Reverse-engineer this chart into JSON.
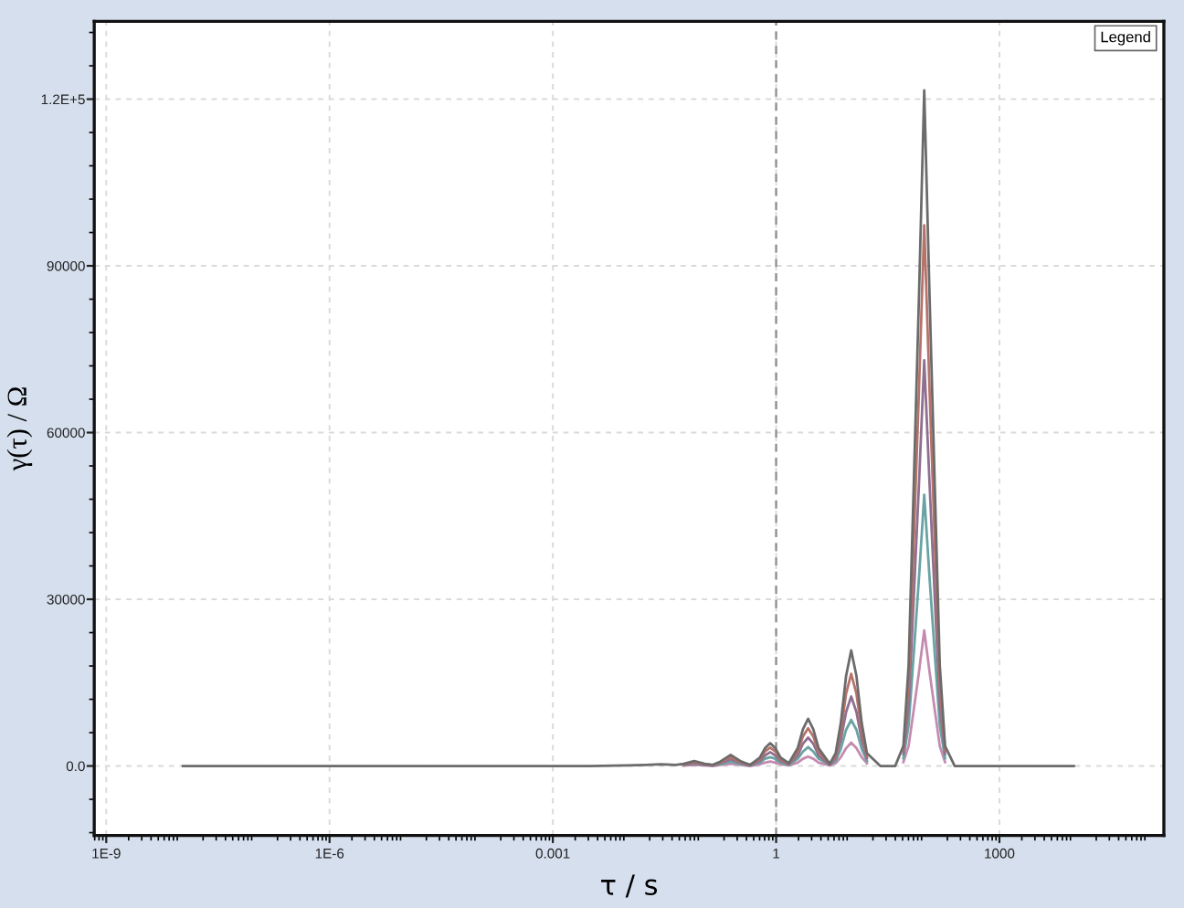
{
  "chart_data": {
    "type": "line",
    "xlabel": "τ / s",
    "ylabel": "γ(τ) / Ω",
    "annotations": [
      "Legend"
    ],
    "log": "x",
    "grid": true,
    "marker": "none",
    "line_style": "solid",
    "xlim": [
      6.9e-10,
      162000
    ],
    "xticks": [
      {
        "value": 1e-09,
        "label": "1E-9"
      },
      {
        "value": 1e-06,
        "label": "1E-6"
      },
      0.001,
      1,
      1000
    ],
    "ylim": [
      -12500,
      134000
    ],
    "yticks": [
      {
        "value": 0,
        "label": "0.0"
      },
      30000,
      60000,
      90000,
      {
        "value": 120000,
        "label": "1.2E+5"
      }
    ],
    "ref_lines": [
      {
        "axis": "x",
        "value": 1,
        "color": "#8c8c8c",
        "line_style": "dashed"
      }
    ],
    "x": [
      1.07e-08,
      3.16e-07,
      1e-05,
      0.0001,
      0.001,
      0.00316,
      0.01,
      0.0178,
      0.0282,
      0.0447,
      0.0575,
      0.0794,
      0.11,
      0.141,
      0.178,
      0.245,
      0.339,
      0.447,
      0.603,
      0.708,
      0.832,
      0.977,
      1.15,
      1.48,
      1.95,
      2.29,
      2.69,
      3.16,
      3.72,
      5.25,
      6.31,
      7.41,
      8.71,
      10.2,
      12.0,
      14.1,
      16.6,
      25.1,
      39.8,
      51.3,
      60.3,
      70.8,
      83.2,
      97.7,
      115,
      135,
      158,
      186,
      251,
      1000,
      10000
    ],
    "series": [
      {
        "color": "#c48bb0",
        "values": [
          null,
          null,
          null,
          null,
          null,
          null,
          null,
          null,
          null,
          null,
          100,
          200,
          100,
          0,
          200,
          400,
          200,
          0,
          300,
          600,
          800,
          600,
          300,
          100,
          600,
          1300,
          1700,
          1300,
          600,
          100,
          500,
          1600,
          3200,
          4200,
          3200,
          1600,
          500,
          null,
          null,
          700,
          3600,
          10200,
          17000,
          24400,
          17000,
          10200,
          3600,
          700,
          null,
          null,
          null
        ]
      },
      {
        "color": "#6aa3a3",
        "values": [
          null,
          null,
          null,
          null,
          null,
          null,
          null,
          null,
          null,
          null,
          200,
          400,
          200,
          100,
          300,
          800,
          300,
          100,
          600,
          1300,
          1600,
          1300,
          600,
          200,
          1300,
          2600,
          3400,
          2600,
          1300,
          200,
          900,
          3100,
          6500,
          8300,
          6500,
          3100,
          900,
          null,
          null,
          1400,
          7300,
          20400,
          34000,
          48800,
          34000,
          20400,
          7300,
          1400,
          null,
          null,
          null
        ]
      },
      {
        "color": "#8f6f8f",
        "values": [
          null,
          null,
          null,
          null,
          null,
          null,
          null,
          null,
          null,
          null,
          200,
          500,
          200,
          100,
          500,
          1200,
          500,
          100,
          900,
          1900,
          2500,
          1900,
          900,
          300,
          1900,
          4000,
          5100,
          4000,
          1900,
          200,
          1400,
          4700,
          9700,
          12500,
          9700,
          4700,
          1400,
          null,
          null,
          2200,
          10900,
          30600,
          51000,
          73000,
          51000,
          30600,
          10900,
          2200,
          null,
          null,
          null
        ]
      },
      {
        "color": "#b5736a",
        "values": [
          null,
          null,
          null,
          null,
          null,
          null,
          null,
          null,
          null,
          null,
          300,
          700,
          300,
          200,
          600,
          1600,
          600,
          200,
          1200,
          2600,
          3300,
          2600,
          1200,
          400,
          2600,
          5300,
          6800,
          5300,
          2600,
          300,
          1800,
          6200,
          13000,
          16600,
          13000,
          6200,
          1800,
          null,
          null,
          2900,
          14600,
          40800,
          68000,
          97300,
          68000,
          40800,
          14600,
          2900,
          null,
          null,
          null
        ]
      },
      {
        "color": "#6b6b6b",
        "values": [
          0,
          0,
          0,
          0,
          0,
          0,
          100,
          200,
          300,
          200,
          400,
          900,
          400,
          200,
          800,
          2000,
          800,
          200,
          1500,
          3200,
          4100,
          3200,
          1500,
          500,
          3200,
          6600,
          8500,
          6600,
          3200,
          400,
          2300,
          7800,
          16200,
          20800,
          16200,
          7800,
          2300,
          0,
          0,
          3600,
          18200,
          51000,
          85000,
          121600,
          85000,
          51000,
          18200,
          3600,
          0,
          0,
          0
        ]
      }
    ]
  }
}
